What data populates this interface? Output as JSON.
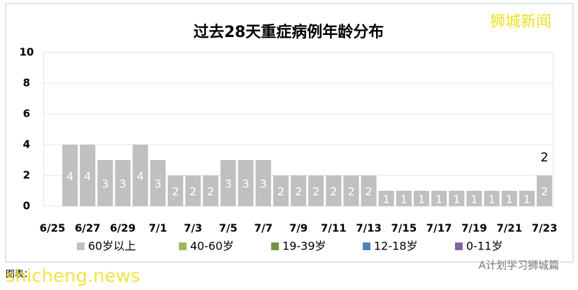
{
  "chart_data": {
    "type": "bar",
    "stacked": true,
    "title": "过去28天重症病例年龄分布",
    "categories": [
      "6/25",
      null,
      "6/27",
      null,
      "6/29",
      null,
      "7/1",
      null,
      "7/3",
      null,
      "7/5",
      null,
      "7/7",
      null,
      "7/9",
      null,
      "7/11",
      null,
      "7/13",
      null,
      "7/15",
      null,
      "7/17",
      null,
      "7/19",
      null,
      "7/21",
      null,
      "7/23"
    ],
    "series": [
      {
        "name": "60岁以上",
        "color": "#c0c0c0",
        "values": [
          0,
          4,
          4,
          3,
          3,
          4,
          3,
          2,
          2,
          2,
          3,
          3,
          3,
          2,
          2,
          2,
          2,
          2,
          2,
          1,
          1,
          1,
          1,
          1,
          1,
          1,
          1,
          1,
          2
        ]
      },
      {
        "name": "40-60岁",
        "color": "#9bbb59",
        "values": [
          0,
          0,
          0,
          0,
          0,
          0,
          0,
          0,
          0,
          0,
          0,
          0,
          0,
          0,
          0,
          0,
          0,
          0,
          0,
          0,
          0,
          0,
          0,
          0,
          0,
          0,
          0,
          0,
          0
        ]
      },
      {
        "name": "19-39岁",
        "color": "#77933c",
        "values": [
          0,
          0,
          0,
          0,
          0,
          0,
          0,
          0,
          0,
          0,
          0,
          0,
          0,
          0,
          0,
          0,
          0,
          0,
          0,
          0,
          0,
          0,
          0,
          0,
          0,
          0,
          0,
          0,
          0
        ]
      },
      {
        "name": "12-18岁",
        "color": "#4f81bd",
        "values": [
          0,
          0,
          0,
          0,
          0,
          0,
          0,
          0,
          0,
          0,
          0,
          0,
          0,
          0,
          0,
          0,
          0,
          0,
          0,
          0,
          0,
          0,
          0,
          0,
          0,
          0,
          0,
          0,
          0
        ]
      },
      {
        "name": "0-11岁",
        "color": "#8064a2",
        "values": [
          0,
          0,
          0,
          0,
          0,
          0,
          0,
          0,
          0,
          0,
          0,
          0,
          0,
          0,
          0,
          0,
          0,
          0,
          0,
          0,
          0,
          0,
          0,
          0,
          0,
          0,
          0,
          0,
          0
        ]
      }
    ],
    "annotation": "2",
    "ylim": [
      0,
      10
    ],
    "yticks": [
      0,
      2,
      4,
      6,
      8,
      10
    ],
    "grid": true,
    "legend": "bottom"
  },
  "watermarks": {
    "top_right": "狮城新闻",
    "bottom_left": "shicheng.news",
    "source": "图表：",
    "account": "A计划学习狮城篇"
  }
}
